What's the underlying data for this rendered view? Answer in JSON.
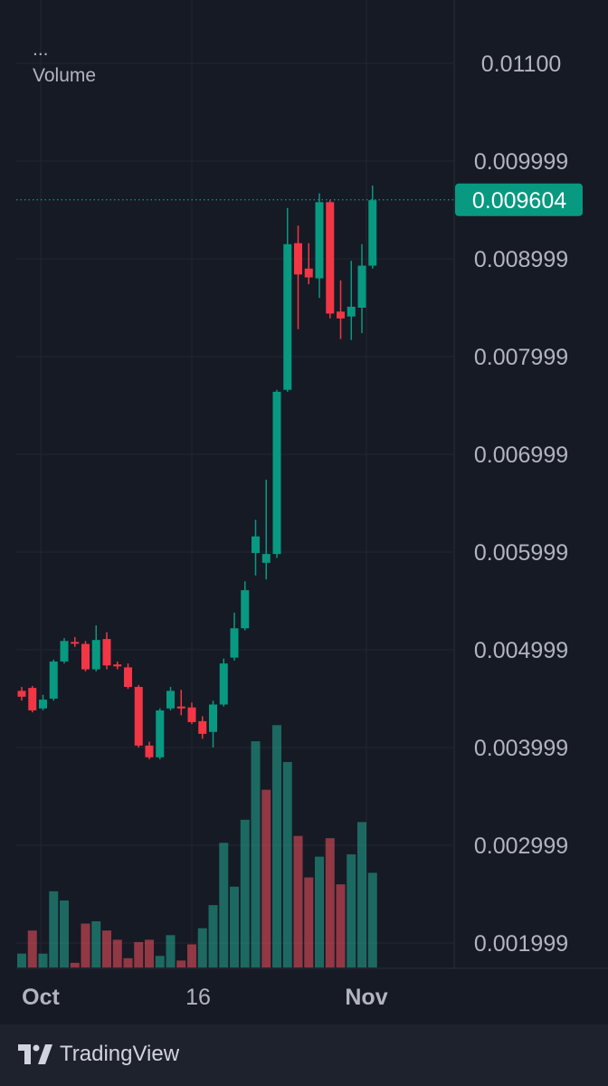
{
  "legend": {
    "ellipsis": "...",
    "volume_label": "Volume"
  },
  "price_tag": {
    "value": "0.009604",
    "color": "#089981"
  },
  "brand": {
    "name": "TradingView"
  },
  "colors": {
    "up": "#089981",
    "down": "#f23645",
    "up_volume": "#22ab94",
    "down_volume": "#f7525f"
  },
  "chart_data": {
    "type": "candlestick",
    "y_ticks": [
      "0.01100",
      "0.009999",
      "0.008999",
      "0.007999",
      "0.006999",
      "0.005999",
      "0.004999",
      "0.003999",
      "0.002999",
      "0.001999"
    ],
    "y_tick_values": [
      0.011,
      0.01,
      0.009,
      0.008,
      0.007,
      0.006,
      0.005,
      0.004,
      0.003,
      0.002
    ],
    "x_ticks": [
      {
        "label": "Oct",
        "index": 1
      },
      {
        "label": "16",
        "index": 16
      },
      {
        "label": "Nov",
        "index": 32
      }
    ],
    "last_price": 0.009604,
    "candles": [
      {
        "o": 0.00458,
        "h": 0.00462,
        "l": 0.00448,
        "c": 0.00452
      },
      {
        "o": 0.00461,
        "h": 0.00463,
        "l": 0.00436,
        "c": 0.00438
      },
      {
        "o": 0.0044,
        "h": 0.00454,
        "l": 0.00438,
        "c": 0.00449
      },
      {
        "o": 0.0045,
        "h": 0.0049,
        "l": 0.00448,
        "c": 0.00488
      },
      {
        "o": 0.00488,
        "h": 0.00512,
        "l": 0.00486,
        "c": 0.00509
      },
      {
        "o": 0.00508,
        "h": 0.00513,
        "l": 0.00503,
        "c": 0.00507
      },
      {
        "o": 0.00506,
        "h": 0.00509,
        "l": 0.00478,
        "c": 0.0048
      },
      {
        "o": 0.0048,
        "h": 0.00525,
        "l": 0.00478,
        "c": 0.0051
      },
      {
        "o": 0.00511,
        "h": 0.00518,
        "l": 0.0048,
        "c": 0.00484
      },
      {
        "o": 0.00485,
        "h": 0.00488,
        "l": 0.0048,
        "c": 0.00483
      },
      {
        "o": 0.00482,
        "h": 0.00486,
        "l": 0.0046,
        "c": 0.00462
      },
      {
        "o": 0.00462,
        "h": 0.00464,
        "l": 0.004,
        "c": 0.00402
      },
      {
        "o": 0.00402,
        "h": 0.00406,
        "l": 0.00388,
        "c": 0.0039
      },
      {
        "o": 0.0039,
        "h": 0.0044,
        "l": 0.00388,
        "c": 0.00438
      },
      {
        "o": 0.0044,
        "h": 0.00462,
        "l": 0.00438,
        "c": 0.00458
      },
      {
        "o": 0.00442,
        "h": 0.00459,
        "l": 0.00433,
        "c": 0.0044
      },
      {
        "o": 0.00441,
        "h": 0.00446,
        "l": 0.00424,
        "c": 0.00426
      },
      {
        "o": 0.00427,
        "h": 0.00432,
        "l": 0.00409,
        "c": 0.00414
      },
      {
        "o": 0.00416,
        "h": 0.00448,
        "l": 0.004,
        "c": 0.00444
      },
      {
        "o": 0.00444,
        "h": 0.00491,
        "l": 0.00442,
        "c": 0.00486
      },
      {
        "o": 0.00492,
        "h": 0.00538,
        "l": 0.00489,
        "c": 0.00522
      },
      {
        "o": 0.00522,
        "h": 0.0057,
        "l": 0.0052,
        "c": 0.00561
      },
      {
        "o": 0.00599,
        "h": 0.00633,
        "l": 0.00576,
        "c": 0.00616
      },
      {
        "o": 0.00589,
        "h": 0.00674,
        "l": 0.00572,
        "c": 0.00598
      },
      {
        "o": 0.00598,
        "h": 0.00766,
        "l": 0.00594,
        "c": 0.00764
      },
      {
        "o": 0.00766,
        "h": 0.00952,
        "l": 0.00764,
        "c": 0.00915
      },
      {
        "o": 0.00916,
        "h": 0.00934,
        "l": 0.00828,
        "c": 0.00884
      },
      {
        "o": 0.0089,
        "h": 0.00916,
        "l": 0.00874,
        "c": 0.00881
      },
      {
        "o": 0.0088,
        "h": 0.00967,
        "l": 0.0086,
        "c": 0.00958
      },
      {
        "o": 0.00958,
        "h": 0.0096,
        "l": 0.00839,
        "c": 0.00844
      },
      {
        "o": 0.00846,
        "h": 0.00878,
        "l": 0.00818,
        "c": 0.00839
      },
      {
        "o": 0.00841,
        "h": 0.00898,
        "l": 0.00817,
        "c": 0.00851
      },
      {
        "o": 0.0085,
        "h": 0.00915,
        "l": 0.00824,
        "c": 0.00893
      },
      {
        "o": 0.00893,
        "h": 0.00975,
        "l": 0.0089,
        "c": 0.0096
      }
    ],
    "volume": [
      0.6,
      1.6,
      0.6,
      3.3,
      2.9,
      0.2,
      1.9,
      2.0,
      1.6,
      1.2,
      0.4,
      1.1,
      1.2,
      0.5,
      1.4,
      0.3,
      1.0,
      1.7,
      2.7,
      5.4,
      3.5,
      6.4,
      9.8,
      7.7,
      10.5,
      8.9,
      5.7,
      3.9,
      4.8,
      5.6,
      3.6,
      4.9,
      6.3,
      4.1
    ],
    "volume_direction": [
      "up",
      "down",
      "up",
      "up",
      "up",
      "down",
      "down",
      "up",
      "down",
      "down",
      "down",
      "down",
      "down",
      "up",
      "up",
      "down",
      "down",
      "up",
      "up",
      "up",
      "up",
      "up",
      "up",
      "down",
      "up",
      "up",
      "down",
      "down",
      "up",
      "down",
      "down",
      "up",
      "up",
      "up"
    ]
  }
}
